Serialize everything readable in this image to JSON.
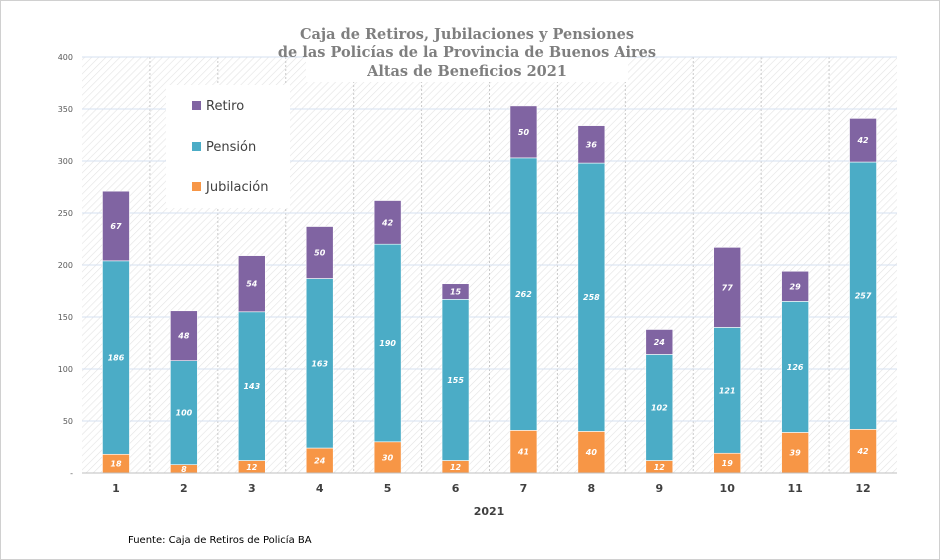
{
  "chart_data": {
    "type": "bar",
    "stacked": true,
    "title": [
      "Caja de Retiros, Jubilaciones y Pensiones",
      "de las Policías de la Provincia de Buenos Aires",
      "Altas de Beneficios 2021"
    ],
    "xlabel": "2021",
    "ylabel": "",
    "categories": [
      "1",
      "2",
      "3",
      "4",
      "5",
      "6",
      "7",
      "8",
      "9",
      "10",
      "11",
      "12"
    ],
    "ylim": [
      0,
      400
    ],
    "yticks": [
      0,
      50,
      100,
      150,
      200,
      250,
      300,
      350,
      400
    ],
    "ytick_labels": [
      "-",
      "50",
      "100",
      "150",
      "200",
      "250",
      "300",
      "350",
      "400"
    ],
    "grid": true,
    "legend_position": "top-left",
    "series": [
      {
        "name": "Jubilación",
        "color": "#f79646",
        "values": [
          18,
          8,
          12,
          24,
          30,
          12,
          41,
          40,
          12,
          19,
          39,
          42
        ]
      },
      {
        "name": "Pensión",
        "color": "#4bacc6",
        "values": [
          186,
          100,
          143,
          163,
          190,
          155,
          262,
          258,
          102,
          121,
          126,
          257
        ]
      },
      {
        "name": "Retiro",
        "color": "#8064a2",
        "values": [
          67,
          48,
          54,
          50,
          42,
          15,
          50,
          36,
          24,
          77,
          29,
          42
        ]
      }
    ],
    "legend_order": [
      "Retiro",
      "Pensión",
      "Jubilación"
    ]
  },
  "footer": {
    "source": "Fuente: Caja de Retiros de Policía BA"
  }
}
